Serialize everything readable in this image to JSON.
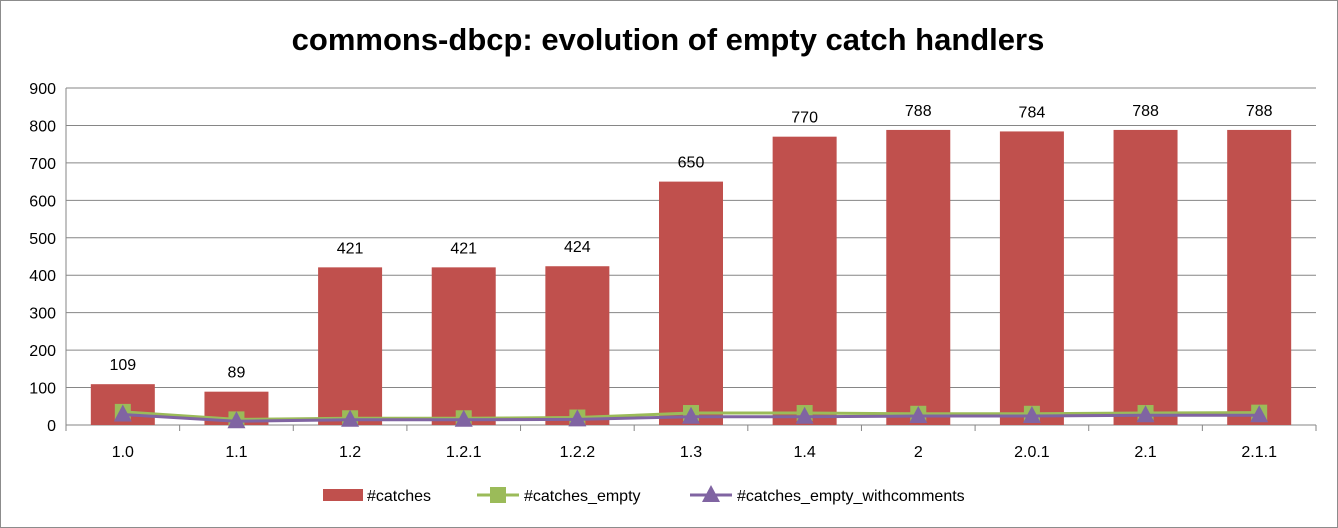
{
  "chart_data": {
    "type": "bar",
    "title": "commons-dbcp: evolution of empty catch handlers",
    "xlabel": "",
    "ylabel": "",
    "ylim": [
      0,
      900
    ],
    "yticks": [
      "0",
      "100",
      "200",
      "300",
      "400",
      "500",
      "600",
      "700",
      "800",
      "900"
    ],
    "grid": true,
    "legend_position": "bottom",
    "categories": [
      "1.0",
      "1.1",
      "1.2",
      "1.2.1",
      "1.2.2",
      "1.3",
      "1.4",
      "2",
      "2.0.1",
      "2.1",
      "2.1.1"
    ],
    "series": [
      {
        "name": "#catches",
        "kind": "bar",
        "color": "#c0504d",
        "values": [
          109,
          89,
          421,
          421,
          424,
          650,
          770,
          788,
          784,
          788,
          788
        ],
        "labels": [
          "109",
          "89",
          "421",
          "421",
          "424",
          "650",
          "770",
          "788",
          "784",
          "788",
          "788"
        ]
      },
      {
        "name": "#catches_empty",
        "kind": "line",
        "marker": "square",
        "color": "#9bbb59",
        "values": [
          35,
          15,
          18,
          18,
          20,
          32,
          32,
          30,
          30,
          32,
          33
        ]
      },
      {
        "name": "#catches_empty_withcomments",
        "kind": "line",
        "marker": "triangle",
        "color": "#8064a2",
        "values": [
          28,
          10,
          14,
          14,
          15,
          22,
          22,
          24,
          24,
          26,
          26
        ]
      }
    ]
  }
}
